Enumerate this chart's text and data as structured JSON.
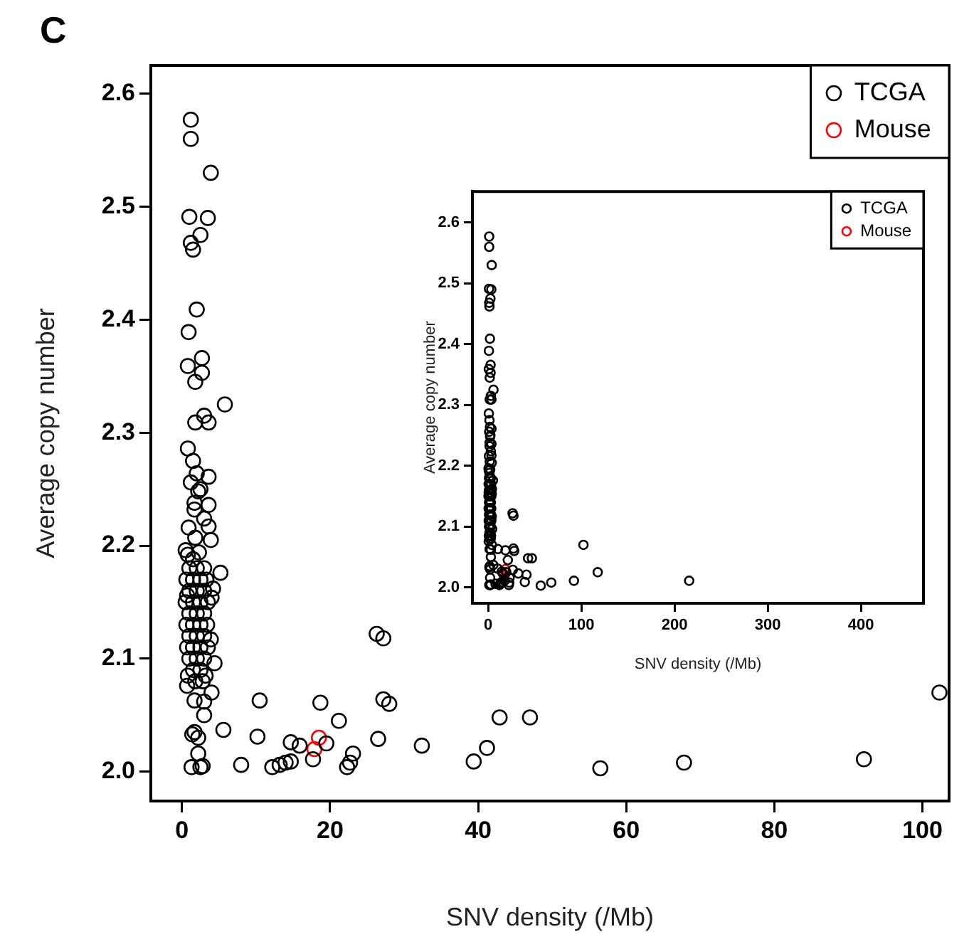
{
  "chart_data": [
    {
      "type": "scatter",
      "title": "C",
      "xlabel": "SNV density (/Mb)",
      "ylabel": "Average copy number",
      "xlim": [
        -4.2,
        103.6
      ],
      "ylim": [
        1.974,
        2.625
      ],
      "xticks": [
        0,
        20,
        40,
        60,
        80,
        100
      ],
      "yticks": [
        {
          "value": 2.0,
          "label": "2.0"
        },
        {
          "value": 2.1,
          "label": "2.1"
        },
        {
          "value": 2.2,
          "label": "2.2"
        },
        {
          "value": 2.3,
          "label": "2.3"
        },
        {
          "value": 2.4,
          "label": "2.4"
        },
        {
          "value": 2.5,
          "label": "2.5"
        },
        {
          "value": 2.6,
          "label": "2.6"
        }
      ],
      "legend": "top right",
      "marker": "circle",
      "series": [
        {
          "name": "TCGA",
          "color": "#000000",
          "x": [
            1.2,
            1.2,
            3.9,
            1.0,
            3.5,
            2.5,
            1.2,
            1.5,
            2.0,
            0.9,
            0.8,
            2.7,
            2.7,
            1.8,
            5.8,
            1.8,
            3.0,
            3.6,
            0.8,
            1.5,
            2.0,
            3.6,
            1.2,
            2.5,
            2.2,
            1.7,
            3.6,
            1.7,
            3.0,
            3.6,
            0.9,
            1.8,
            3.9,
            0.5,
            0.8,
            2.3,
            1.5,
            5.2,
            4.2,
            4.0,
            0.7,
            1.0,
            2.0,
            3.0,
            0.6,
            1.5,
            2.5,
            3.3,
            1.0,
            2.0,
            3.0,
            0.5,
            1.5,
            2.5,
            3.5,
            1.0,
            2.0,
            3.0,
            0.6,
            1.5,
            2.5,
            3.4,
            1.0,
            2.0,
            3.0,
            0.7,
            1.5,
            2.5,
            3.5,
            1.0,
            2.0,
            3.0,
            1.5,
            2.5,
            0.8,
            3.2,
            1.8,
            2.8,
            3.9,
            4.4,
            0.7,
            4.0,
            1.7,
            3.0,
            3.0,
            10.5,
            5.6,
            10.2,
            1.4,
            2.2,
            1.7,
            2.2,
            2.5,
            1.3,
            2.8,
            8.0,
            12.2,
            13.2,
            14.0,
            14.7,
            14.7,
            15.9,
            18.7,
            19.5,
            17.7,
            21.2,
            23.1,
            22.3,
            22.7,
            26.5,
            26.3,
            27.2,
            27.2,
            28.0,
            32.4,
            39.4,
            41.2,
            42.9,
            47.0,
            56.5,
            67.8,
            92.1,
            102.3
          ],
          "values": [
            2.577,
            2.56,
            2.53,
            2.491,
            2.49,
            2.475,
            2.468,
            2.462,
            2.409,
            2.389,
            2.359,
            2.366,
            2.353,
            2.345,
            2.325,
            2.309,
            2.315,
            2.309,
            2.286,
            2.275,
            2.264,
            2.261,
            2.256,
            2.25,
            2.248,
            2.238,
            2.236,
            2.232,
            2.224,
            2.217,
            2.216,
            2.207,
            2.205,
            2.196,
            2.192,
            2.194,
            2.188,
            2.176,
            2.162,
            2.154,
            2.156,
            2.18,
            2.18,
            2.18,
            2.17,
            2.17,
            2.17,
            2.17,
            2.16,
            2.16,
            2.16,
            2.15,
            2.15,
            2.15,
            2.15,
            2.14,
            2.14,
            2.14,
            2.13,
            2.13,
            2.13,
            2.13,
            2.12,
            2.12,
            2.12,
            2.11,
            2.11,
            2.11,
            2.11,
            2.1,
            2.1,
            2.1,
            2.09,
            2.09,
            2.085,
            2.085,
            2.08,
            2.08,
            2.117,
            2.096,
            2.076,
            2.07,
            2.063,
            2.062,
            2.05,
            2.063,
            2.037,
            2.031,
            2.033,
            2.03,
            2.035,
            2.016,
            2.004,
            2.004,
            2.005,
            2.006,
            2.004,
            2.006,
            2.008,
            2.009,
            2.026,
            2.023,
            2.061,
            2.025,
            2.011,
            2.045,
            2.016,
            2.004,
            2.008,
            2.029,
            2.122,
            2.118,
            2.064,
            2.06,
            2.023,
            2.009,
            2.021,
            2.048,
            2.048,
            2.003,
            2.008,
            2.011,
            2.07
          ]
        },
        {
          "name": "Mouse",
          "color": "#ff0000",
          "x": [
            18.5,
            17.9
          ],
          "values": [
            2.03,
            2.02
          ]
        }
      ]
    },
    {
      "type": "scatter",
      "xlabel": "SNV density (/Mb)",
      "ylabel": "Average copy number",
      "xlim": [
        -16.8,
        467
      ],
      "ylim": [
        1.974,
        2.651
      ],
      "xticks": [
        0,
        100,
        200,
        300,
        400
      ],
      "yticks": [
        {
          "value": 2.0,
          "label": "2.0"
        },
        {
          "value": 2.1,
          "label": "2.1"
        },
        {
          "value": 2.2,
          "label": "2.2"
        },
        {
          "value": 2.3,
          "label": "2.3"
        },
        {
          "value": 2.4,
          "label": "2.4"
        },
        {
          "value": 2.5,
          "label": "2.5"
        },
        {
          "value": 2.6,
          "label": "2.6"
        }
      ],
      "legend": "top right",
      "marker": "circle",
      "series": [
        {
          "name": "TCGA",
          "color": "#000000",
          "x": [
            1.2,
            1.2,
            3.9,
            1.0,
            3.5,
            2.5,
            1.2,
            1.5,
            2.0,
            0.9,
            0.8,
            2.7,
            2.7,
            1.8,
            5.8,
            1.8,
            3.0,
            3.6,
            0.8,
            1.5,
            2.0,
            3.6,
            1.2,
            2.5,
            2.2,
            1.7,
            3.6,
            1.7,
            3.0,
            3.6,
            0.9,
            1.8,
            3.9,
            0.5,
            0.8,
            2.3,
            1.5,
            5.2,
            4.2,
            4.0,
            0.7,
            1.0,
            2.0,
            3.0,
            0.6,
            1.5,
            3.3,
            1.0,
            3.0,
            0.5,
            1.5,
            2.5,
            3.5,
            1.0,
            2.0,
            3.0,
            0.6,
            1.5,
            2.5,
            3.4,
            1.0,
            2.0,
            3.0,
            0.7,
            1.5,
            2.5,
            3.5,
            1.0,
            2.0,
            3.0,
            1.5,
            2.5,
            0.8,
            3.2,
            1.8,
            2.8,
            3.9,
            4.4,
            0.7,
            4.0,
            1.7,
            3.0,
            3.0,
            10.5,
            5.6,
            10.2,
            1.4,
            2.2,
            1.7,
            2.2,
            2.5,
            1.3,
            2.8,
            8.0,
            12.2,
            13.2,
            14.0,
            14.7,
            14.7,
            15.9,
            18.7,
            19.5,
            17.7,
            21.2,
            23.1,
            22.3,
            22.7,
            26.5,
            26.3,
            27.2,
            27.2,
            28.0,
            32.4,
            39.4,
            41.2,
            42.9,
            47.0,
            56.5,
            67.8,
            92.1,
            102.3,
            117.6,
            215.7
          ],
          "values": [
            2.577,
            2.56,
            2.53,
            2.491,
            2.49,
            2.475,
            2.468,
            2.462,
            2.409,
            2.389,
            2.359,
            2.366,
            2.353,
            2.345,
            2.325,
            2.309,
            2.315,
            2.309,
            2.286,
            2.275,
            2.264,
            2.261,
            2.256,
            2.25,
            2.248,
            2.238,
            2.236,
            2.232,
            2.224,
            2.217,
            2.216,
            2.207,
            2.205,
            2.196,
            2.192,
            2.194,
            2.188,
            2.176,
            2.162,
            2.154,
            2.156,
            2.18,
            2.18,
            2.18,
            2.17,
            2.17,
            2.17,
            2.16,
            2.16,
            2.15,
            2.15,
            2.15,
            2.15,
            2.14,
            2.14,
            2.14,
            2.13,
            2.13,
            2.13,
            2.13,
            2.12,
            2.12,
            2.12,
            2.11,
            2.11,
            2.11,
            2.11,
            2.1,
            2.1,
            2.1,
            2.09,
            2.09,
            2.085,
            2.085,
            2.08,
            2.08,
            2.117,
            2.096,
            2.076,
            2.07,
            2.063,
            2.062,
            2.05,
            2.063,
            2.037,
            2.031,
            2.033,
            2.03,
            2.035,
            2.016,
            2.004,
            2.004,
            2.005,
            2.006,
            2.004,
            2.006,
            2.008,
            2.009,
            2.026,
            2.023,
            2.061,
            2.025,
            2.011,
            2.045,
            2.016,
            2.004,
            2.008,
            2.029,
            2.122,
            2.118,
            2.064,
            2.06,
            2.023,
            2.009,
            2.021,
            2.048,
            2.048,
            2.003,
            2.008,
            2.011,
            2.07,
            2.025,
            2.011
          ]
        },
        {
          "name": "Mouse",
          "color": "#ff0000",
          "x": [
            18.5,
            17.9
          ],
          "values": [
            2.03,
            2.02
          ]
        }
      ]
    }
  ]
}
